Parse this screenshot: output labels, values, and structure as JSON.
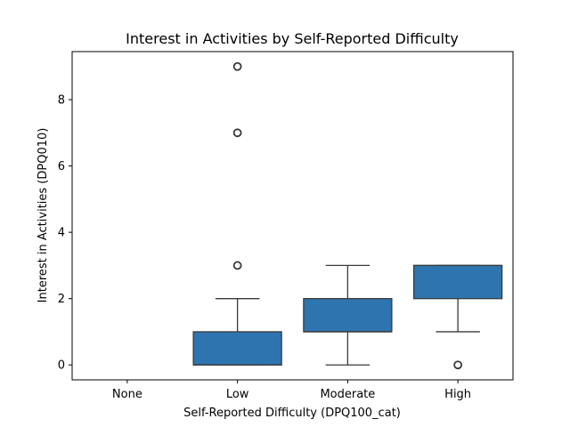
{
  "chart_data": {
    "type": "box",
    "title": "Interest in Activities by Self-Reported Difficulty",
    "xlabel": "Self-Reported Difficulty (DPQ100_cat)",
    "ylabel": "Interest in Activities (DPQ010)",
    "ylim": [
      -0.45,
      9.45
    ],
    "yticks": [
      0,
      2,
      4,
      6,
      8
    ],
    "categories": [
      "None",
      "Low",
      "Moderate",
      "High"
    ],
    "series": [
      {
        "category": "None",
        "values": null
      },
      {
        "category": "Low",
        "q1": 0,
        "median": 0,
        "q3": 1,
        "whisker_low": 0,
        "whisker_high": 2,
        "outliers": [
          3,
          7,
          9
        ]
      },
      {
        "category": "Moderate",
        "q1": 1,
        "median": 1,
        "q3": 2,
        "whisker_low": 0,
        "whisker_high": 3,
        "outliers": []
      },
      {
        "category": "High",
        "q1": 2,
        "median": 3,
        "q3": 3,
        "whisker_low": 1,
        "whisker_high": 3,
        "outliers": [
          0
        ]
      }
    ],
    "box_color": "#2e75b0",
    "line_color": "#3a3a3a",
    "grid": false,
    "legend": "none"
  }
}
